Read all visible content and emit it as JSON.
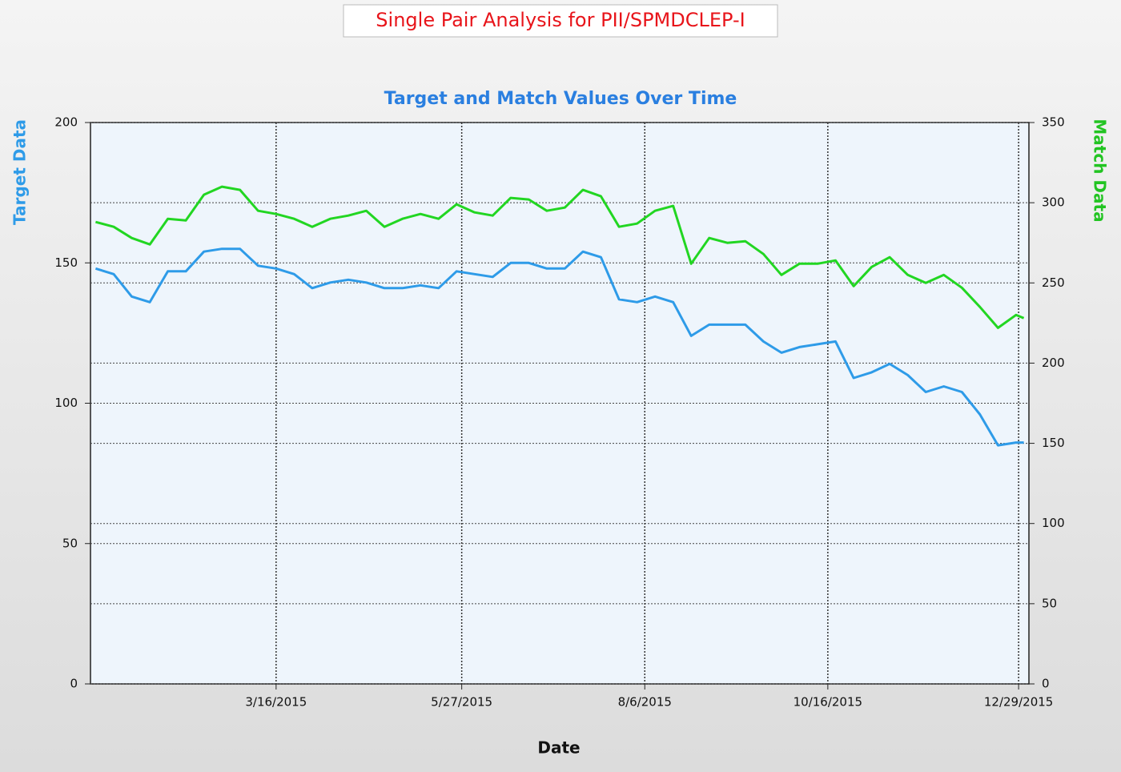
{
  "chart_data": {
    "type": "line",
    "title": "Single Pair Analysis for PII/SPMDCLEP-I",
    "subtitle": "Target and Match Values Over Time",
    "x_label": "Date",
    "y_label": "Target Data",
    "y2_label": "Match Data",
    "x": [
      "1/5/2015",
      "1/12/2015",
      "1/19/2015",
      "1/26/2015",
      "2/2/2015",
      "2/9/2015",
      "2/16/2015",
      "2/23/2015",
      "3/2/2015",
      "3/9/2015",
      "3/16/2015",
      "3/23/2015",
      "3/30/2015",
      "4/6/2015",
      "4/13/2015",
      "4/20/2015",
      "4/27/2015",
      "5/4/2015",
      "5/11/2015",
      "5/18/2015",
      "5/25/2015",
      "6/1/2015",
      "6/8/2015",
      "6/15/2015",
      "6/22/2015",
      "6/29/2015",
      "7/6/2015",
      "7/13/2015",
      "7/20/2015",
      "7/27/2015",
      "8/3/2015",
      "8/10/2015",
      "8/17/2015",
      "8/24/2015",
      "8/31/2015",
      "9/7/2015",
      "9/14/2015",
      "9/21/2015",
      "9/28/2015",
      "10/5/2015",
      "10/12/2015",
      "10/19/2015",
      "10/26/2015",
      "11/2/2015",
      "11/9/2015",
      "11/16/2015",
      "11/23/2015",
      "11/30/2015",
      "12/7/2015",
      "12/14/2015",
      "12/21/2015",
      "12/28/2015",
      "12/31/2015"
    ],
    "series": [
      {
        "name": "Target Data",
        "color": "#2e9be8",
        "values": [
          148,
          146,
          138,
          136,
          147,
          147,
          154,
          155,
          155,
          149,
          148,
          146,
          141,
          143,
          144,
          143,
          141,
          141,
          142,
          141,
          147,
          146,
          145,
          150,
          150,
          148,
          148,
          154,
          152,
          137,
          136,
          138,
          136,
          124,
          128,
          128,
          128,
          122,
          118,
          120,
          121,
          122,
          109,
          111,
          114,
          110,
          104,
          106,
          104,
          96,
          85,
          86,
          86
        ]
      },
      {
        "name": "Match Data",
        "color": "#22d622",
        "axis": "y2",
        "values": [
          288,
          285,
          278,
          274,
          290,
          289,
          305,
          310,
          308,
          295,
          293,
          290,
          285,
          290,
          292,
          295,
          285,
          290,
          293,
          290,
          299,
          294,
          292,
          303,
          302,
          295,
          297,
          308,
          304,
          285,
          287,
          295,
          298,
          262,
          278,
          275,
          276,
          268,
          255,
          262,
          262,
          264,
          248,
          260,
          266,
          255,
          250,
          255,
          247,
          235,
          222,
          230,
          228
        ]
      }
    ],
    "xlim": [
      "1/3/2015",
      "1/2/2016"
    ],
    "xticks": [
      "3/16/2015",
      "5/27/2015",
      "8/6/2015",
      "10/16/2015",
      "12/29/2015"
    ],
    "ylim": [
      0,
      200
    ],
    "yticks": [
      0,
      50,
      100,
      150,
      200
    ],
    "y2lim": [
      0,
      350
    ],
    "y2ticks": [
      0,
      50,
      100,
      150,
      200,
      250,
      300,
      350
    ],
    "grid": true
  }
}
